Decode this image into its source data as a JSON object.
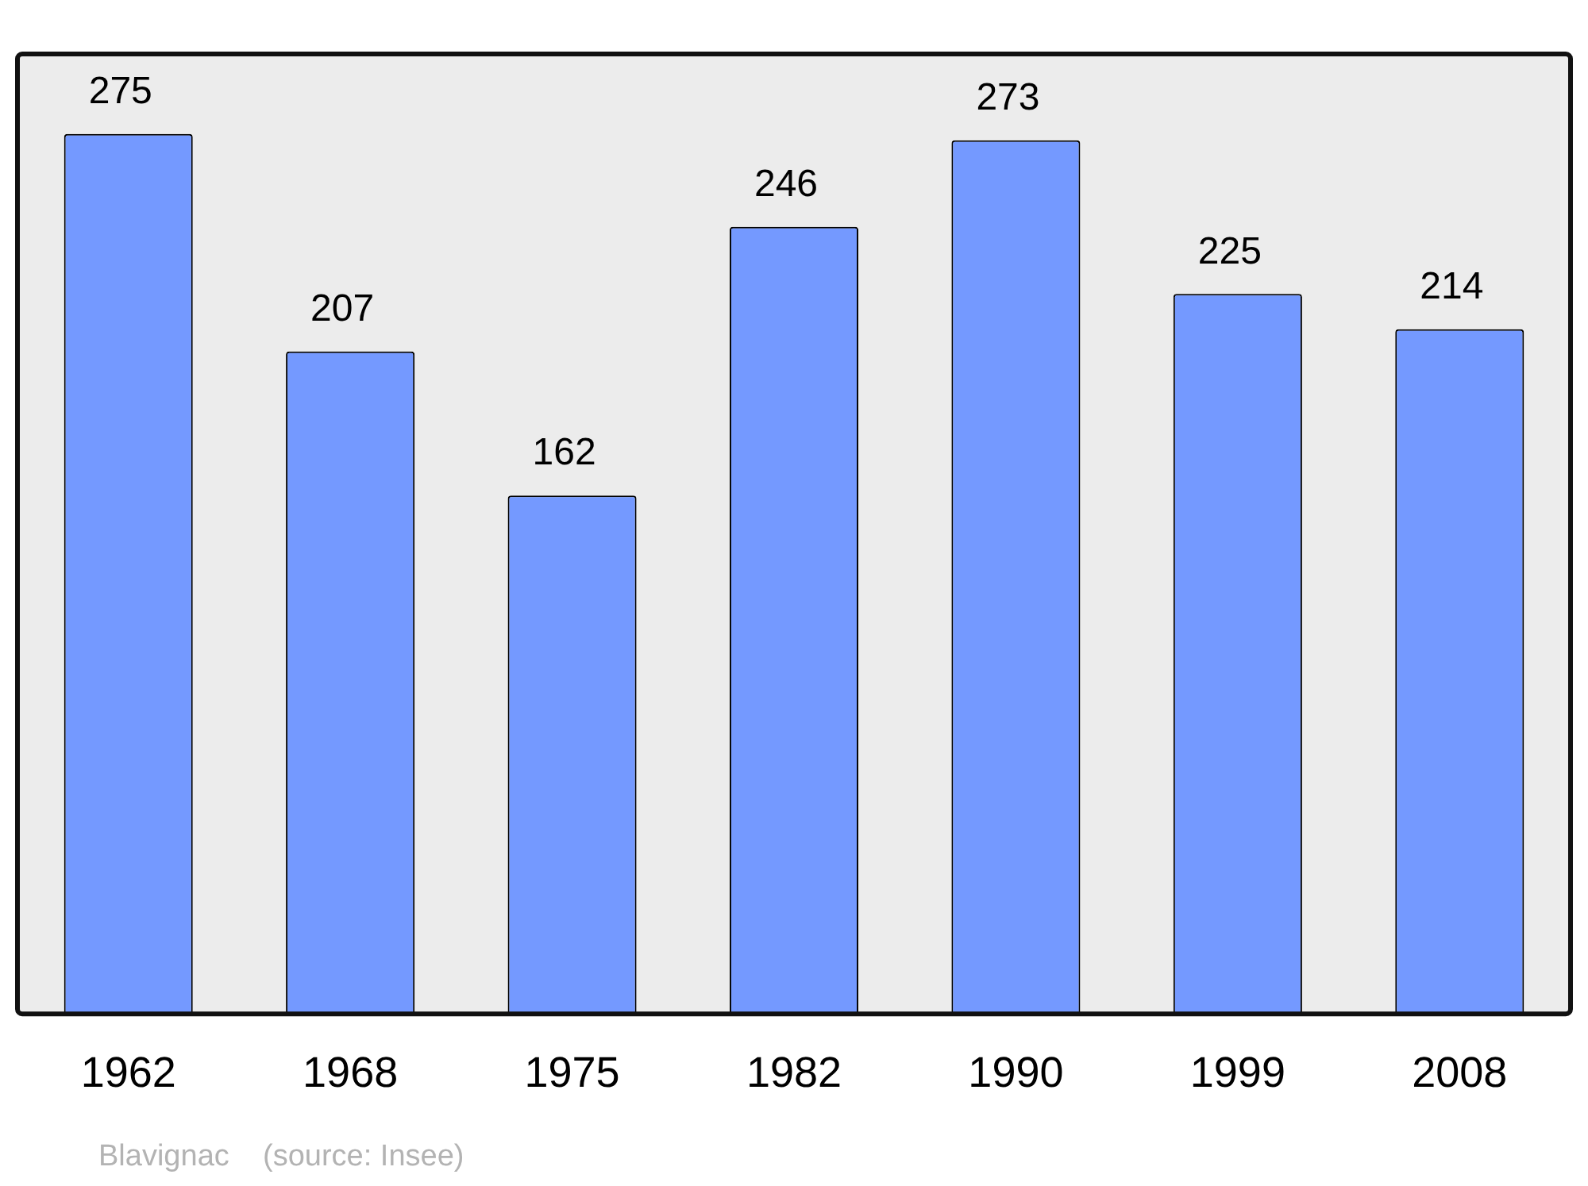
{
  "chart_data": {
    "type": "bar",
    "categories": [
      "1962",
      "1968",
      "1975",
      "1982",
      "1990",
      "1999",
      "2008"
    ],
    "values": [
      275,
      207,
      162,
      246,
      273,
      225,
      214
    ],
    "color": "#7499ff",
    "data_labels": true,
    "grid": false,
    "legend": false,
    "annotations": [
      "Blavignac    (source: Insee)"
    ]
  }
}
